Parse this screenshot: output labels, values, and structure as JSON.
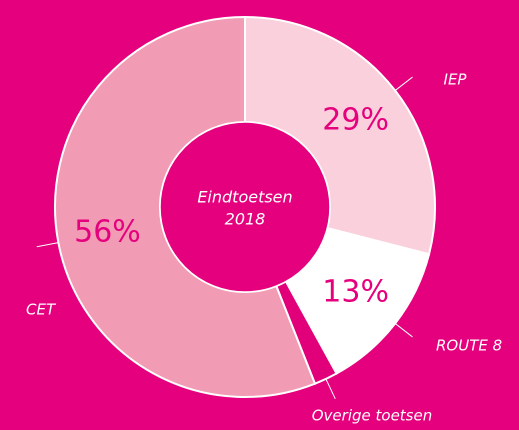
{
  "chart_data": {
    "type": "donut",
    "title": [
      "Eindtoetsen",
      "2018"
    ],
    "categories": [
      "IEP",
      "ROUTE 8",
      "Overige toetsen",
      "CET"
    ],
    "values": [
      29,
      13,
      2,
      56
    ],
    "value_labels": [
      "29%",
      "13%",
      null,
      "56%"
    ],
    "colors": [
      "#f9d0dc",
      "#ffffff",
      "#e2007a",
      "#f29bb5"
    ]
  }
}
